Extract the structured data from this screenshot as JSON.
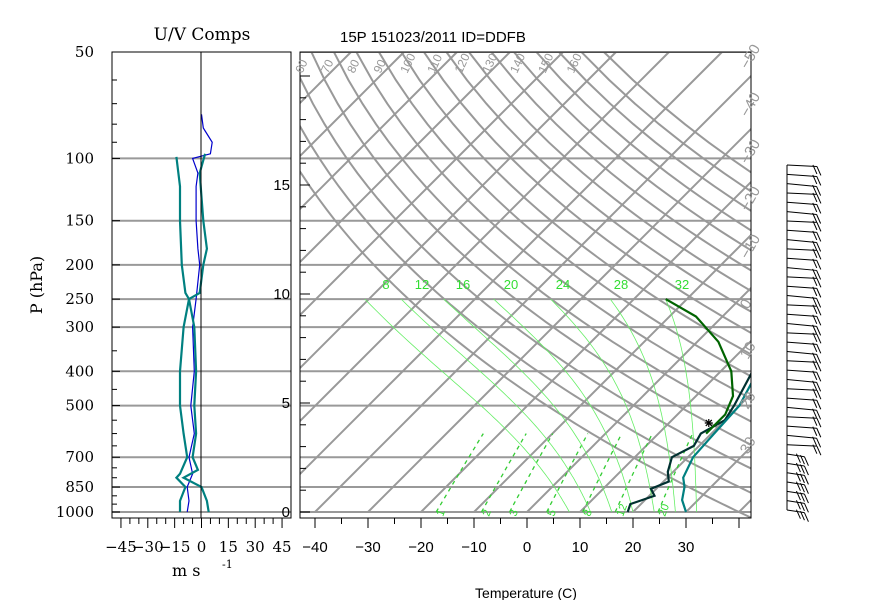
{
  "chart_data": {
    "type": "line",
    "title": "15P 151023/2011 ID=DDFB",
    "left_panel": {
      "title": "U/V Comps",
      "ylabel": "P (hPa)",
      "xlabel": "m s",
      "xlabel_exp": "-1",
      "xlim": [
        -50,
        50
      ],
      "xticks": [
        -45,
        -30,
        -15,
        0,
        15,
        30,
        45
      ],
      "xtick_labels": [
        "−45",
        "−30",
        "−15",
        "0",
        "15",
        "30",
        "45"
      ],
      "pressure_ticks": [
        50,
        100,
        150,
        200,
        250,
        300,
        400,
        500,
        700,
        850,
        1000
      ],
      "series": [
        {
          "color": "#0000cc",
          "points": [
            [
              0,
              75
            ],
            [
              1,
              82
            ],
            [
              6,
              90
            ],
            [
              5,
              97
            ],
            [
              -5,
              100
            ],
            [
              -2,
              110
            ],
            [
              -3,
              120
            ],
            [
              -3,
              150
            ],
            [
              -2,
              180
            ],
            [
              -1,
              200
            ],
            [
              -3,
              250
            ],
            [
              -5,
              300
            ],
            [
              -4,
              400
            ],
            [
              -6,
              500
            ],
            [
              -4,
              600
            ],
            [
              -7,
              700
            ],
            [
              -5,
              780
            ],
            [
              -8,
              850
            ],
            [
              -7,
              930
            ],
            [
              -8,
              1000
            ]
          ]
        },
        {
          "color": "#008080",
          "points": [
            [
              -14,
              99
            ],
            [
              -12,
              120
            ],
            [
              -12,
              150
            ],
            [
              -11,
              200
            ],
            [
              -9,
              240
            ],
            [
              -7,
              250
            ],
            [
              -10,
              300
            ],
            [
              -12,
              400
            ],
            [
              -12,
              500
            ],
            [
              -10,
              600
            ],
            [
              -8,
              700
            ],
            [
              -12,
              780
            ],
            [
              -14,
              800
            ],
            [
              -9,
              850
            ],
            [
              -12,
              930
            ],
            [
              -12,
              1000
            ]
          ]
        },
        {
          "color": "#008080",
          "points": [
            [
              2,
              97
            ],
            [
              -1,
              110
            ],
            [
              1,
              150
            ],
            [
              3,
              180
            ],
            [
              1,
              200
            ],
            [
              -1,
              240
            ],
            [
              -7,
              250
            ],
            [
              -4,
              300
            ],
            [
              -3,
              400
            ],
            [
              -4,
              500
            ],
            [
              -3,
              600
            ],
            [
              -5,
              700
            ],
            [
              -2,
              760
            ],
            [
              -10,
              800
            ],
            [
              0,
              850
            ],
            [
              3,
              930
            ],
            [
              4,
              1000
            ]
          ]
        }
      ]
    },
    "skewt": {
      "xlabel": "Temperature (C)",
      "xlim": [
        -43,
        42
      ],
      "xticks": [
        -40,
        -30,
        -20,
        -10,
        0,
        10,
        20,
        30
      ],
      "xtick_labels": [
        "−40",
        "−30",
        "−20",
        "−10",
        "0",
        "10",
        "20",
        "30"
      ],
      "height_labels": [
        {
          "km": 0,
          "label": "0"
        },
        {
          "km": 5,
          "label": "5"
        },
        {
          "km": 10,
          "label": "10"
        },
        {
          "km": 15,
          "label": "15"
        }
      ],
      "isotherm_top_labels": [
        "−50",
        "−40",
        "−30",
        "−20",
        "−10",
        "0",
        "10",
        "20",
        "30"
      ],
      "theta_labels": [
        "40",
        "50",
        "60",
        "70",
        "80",
        "90",
        "100",
        "110",
        "120",
        "130",
        "140",
        "150",
        "160"
      ],
      "mixing_ratio_labels": [
        "1",
        "2",
        "3",
        "5",
        "8",
        "12",
        "20"
      ],
      "theta_e_labels": [
        "8",
        "12",
        "16",
        "20",
        "24",
        "28",
        "32"
      ],
      "temperature": {
        "color": "#008080",
        "points": [
          [
            -15,
            70
          ],
          [
            -10,
            80
          ],
          [
            -8,
            85
          ],
          [
            -4,
            90
          ],
          [
            -3.5,
            95
          ],
          [
            -4,
            100
          ],
          [
            -2,
            125
          ],
          [
            0,
            150
          ],
          [
            4,
            200
          ],
          [
            8,
            250
          ],
          [
            12,
            300
          ],
          [
            17,
            400
          ],
          [
            20,
            500
          ],
          [
            20.5,
            600
          ],
          [
            21,
            700
          ],
          [
            23,
            800
          ],
          [
            25,
            850
          ],
          [
            27,
            925
          ],
          [
            30,
            1000
          ]
        ]
      },
      "dewpoint": {
        "color": "#003030",
        "points": [
          [
            -15,
            70
          ],
          [
            -10,
            80
          ],
          [
            -8,
            85
          ],
          [
            -4,
            90
          ],
          [
            -3.5,
            95
          ],
          [
            -4,
            100
          ],
          [
            -2,
            125
          ],
          [
            0,
            150
          ],
          [
            3,
            200
          ],
          [
            7,
            250
          ],
          [
            11,
            300
          ],
          [
            16,
            400
          ],
          [
            19,
            500
          ],
          [
            20,
            550
          ],
          [
            18,
            600
          ],
          [
            19,
            650
          ],
          [
            17,
            700
          ],
          [
            19,
            770
          ],
          [
            21,
            820
          ],
          [
            19,
            860
          ],
          [
            21,
            900
          ],
          [
            18,
            950
          ],
          [
            19,
            1000
          ]
        ]
      },
      "parcel": {
        "color": "#006400",
        "points": [
          [
            -14,
            250
          ],
          [
            -5,
            280
          ],
          [
            4,
            330
          ],
          [
            12,
            400
          ],
          [
            17,
            470
          ],
          [
            19,
            530
          ],
          [
            19,
            600
          ]
        ]
      }
    },
    "wind_barbs": {
      "count": 38,
      "color": "#000000"
    }
  }
}
